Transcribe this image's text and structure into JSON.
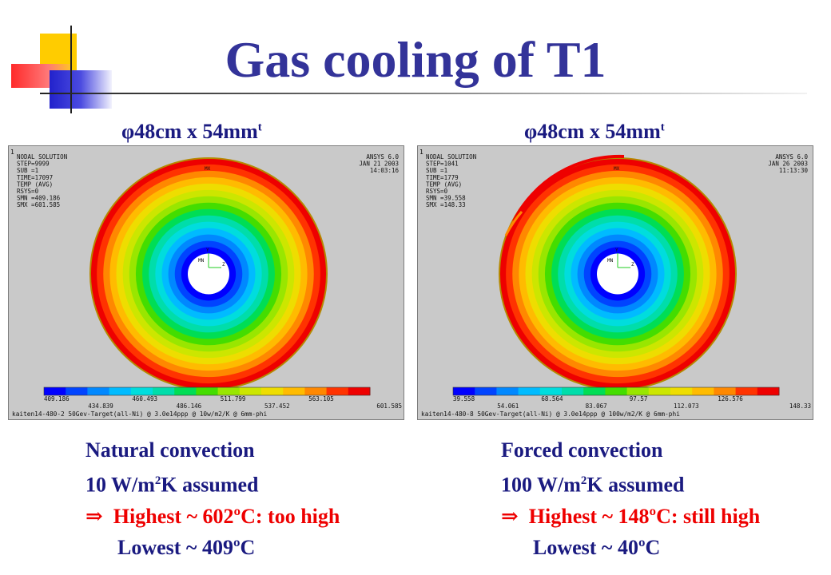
{
  "title": "Gas cooling of T1",
  "left": {
    "dimension": {
      "symbol": "φ",
      "text": "48cm x 54mm",
      "sup": "t"
    },
    "ansys": {
      "header_left": [
        "NODAL SOLUTION",
        "STEP=9999",
        "SUB =1",
        "TIME=17097",
        "TEMP      (AVG)",
        "RSYS=0",
        "SMN =409.186",
        "SMX =601.585"
      ],
      "header_right": [
        "ANSYS 6.0",
        "JAN 21 2003",
        "14:03:16"
      ],
      "mx_label": "MX",
      "mn_label": "MN",
      "legend_values": [
        "409.186",
        "434.839",
        "460.493",
        "486.146",
        "511.799",
        "537.452",
        "563.105",
        "601.585"
      ],
      "caption": "kaiten14-480-2 50Gev-Target(all-Ni) @ 3.0e14ppp @ 10w/m2/K @ 6mm-phi"
    },
    "info": {
      "line1": "Natural convection",
      "line2_prefix": "10 W/m",
      "line2_sup": "2",
      "line2_suffix": "K assumed",
      "arrow": "⇒",
      "highlight": "Highest ~ 602ºC: too high",
      "lowest": "Lowest ~ 409ºC"
    }
  },
  "right": {
    "dimension": {
      "symbol": "φ",
      "text": "48cm x 54mm",
      "sup": "t"
    },
    "ansys": {
      "header_left": [
        "NODAL SOLUTION",
        "STEP=1041",
        "SUB =1",
        "TIME=1779",
        "TEMP      (AVG)",
        "RSYS=0",
        "SMN =39.558",
        "SMX =148.33"
      ],
      "header_right": [
        "ANSYS 6.0",
        "JAN 26 2003",
        "11:13:30"
      ],
      "mx_label": "MX",
      "mn_label": "MN",
      "legend_values": [
        "39.558",
        "54.061",
        "68.564",
        "83.067",
        "97.57",
        "112.073",
        "126.576",
        "148.33"
      ],
      "caption": "kaiten14-480-8 50Gev-Target(all-Ni) @ 3.0e14ppp @ 100w/m2/K @ 6mm-phi"
    },
    "info": {
      "line1": "Forced convection",
      "line2_prefix": "100 W/m",
      "line2_sup": "2",
      "line2_suffix": "K assumed",
      "arrow": "⇒",
      "highlight": "Highest ~ 148ºC: still high",
      "lowest": "Lowest ~ 40ºC"
    }
  },
  "colors": {
    "title": "#333399",
    "text": "#1a1a80",
    "highlight": "#ee0000",
    "contour": [
      "#0000ff",
      "#0044ff",
      "#0088ff",
      "#00bbff",
      "#00dddd",
      "#00ddaa",
      "#00dd55",
      "#44dd00",
      "#99e600",
      "#cce600",
      "#eedd00",
      "#ffbb00",
      "#ff8800",
      "#ff3300",
      "#ee0000"
    ]
  }
}
